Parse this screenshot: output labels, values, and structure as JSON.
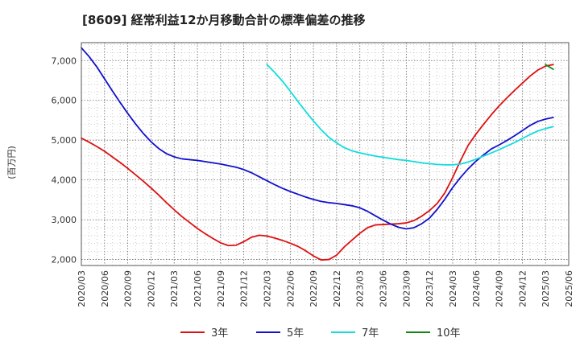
{
  "chart_data": {
    "type": "line",
    "title": "[8609]  経常利益12か月移動合計の標準偏差の推移",
    "xlabel": "",
    "ylabel": "(百万円)",
    "ylim": [
      1850,
      7450
    ],
    "yticks": [
      2000,
      3000,
      4000,
      5000,
      6000,
      7000
    ],
    "ytick_labels": [
      "2,000",
      "3,000",
      "4,000",
      "5,000",
      "6,000",
      "7,000"
    ],
    "xtick_labels": [
      "2020/03",
      "2020/06",
      "2020/09",
      "2020/12",
      "2021/03",
      "2021/06",
      "2021/09",
      "2021/12",
      "2022/03",
      "2022/06",
      "2022/09",
      "2022/12",
      "2023/03",
      "2023/06",
      "2023/09",
      "2023/12",
      "2024/03",
      "2024/06",
      "2024/09",
      "2024/12",
      "2025/03",
      "2025/06"
    ],
    "grid": true,
    "legend_position": "bottom",
    "series": [
      {
        "name": "3年",
        "color": "#dd1111",
        "start_index": 0,
        "values": [
          5050,
          4950,
          4840,
          4720,
          4580,
          4440,
          4290,
          4130,
          3970,
          3800,
          3620,
          3430,
          3250,
          3080,
          2930,
          2780,
          2650,
          2530,
          2420,
          2350,
          2360,
          2450,
          2560,
          2610,
          2590,
          2540,
          2480,
          2410,
          2330,
          2220,
          2090,
          1990,
          2000,
          2110,
          2320,
          2490,
          2660,
          2800,
          2870,
          2880,
          2890,
          2900,
          2920,
          2980,
          3090,
          3230,
          3410,
          3680,
          4060,
          4480,
          4870,
          5150,
          5400,
          5640,
          5860,
          6060,
          6250,
          6430,
          6610,
          6760,
          6860,
          6900
        ]
      },
      {
        "name": "5年",
        "color": "#1111cc",
        "start_index": 0,
        "values": [
          7320,
          7100,
          6840,
          6540,
          6240,
          5950,
          5670,
          5410,
          5170,
          4960,
          4790,
          4660,
          4580,
          4530,
          4510,
          4490,
          4460,
          4430,
          4400,
          4360,
          4320,
          4260,
          4180,
          4080,
          3980,
          3880,
          3790,
          3710,
          3640,
          3570,
          3510,
          3460,
          3430,
          3410,
          3380,
          3350,
          3300,
          3210,
          3100,
          2990,
          2890,
          2810,
          2770,
          2800,
          2900,
          3040,
          3260,
          3520,
          3810,
          4060,
          4280,
          4470,
          4630,
          4780,
          4880,
          4990,
          5110,
          5240,
          5370,
          5470,
          5530,
          5570
        ]
      },
      {
        "name": "7年",
        "color": "#11dddd",
        "start_index": 24,
        "values": [
          6900,
          6700,
          6480,
          6230,
          5970,
          5720,
          5480,
          5260,
          5070,
          4930,
          4810,
          4730,
          4680,
          4640,
          4600,
          4570,
          4540,
          4510,
          4490,
          4460,
          4430,
          4410,
          4390,
          4380,
          4380,
          4400,
          4450,
          4520,
          4600,
          4680,
          4760,
          4850,
          4940,
          5040,
          5140,
          5230,
          5290,
          5340
        ]
      },
      {
        "name": "10年",
        "color": "#118811",
        "start_index": 60,
        "values": [
          6900,
          6780
        ]
      }
    ]
  }
}
